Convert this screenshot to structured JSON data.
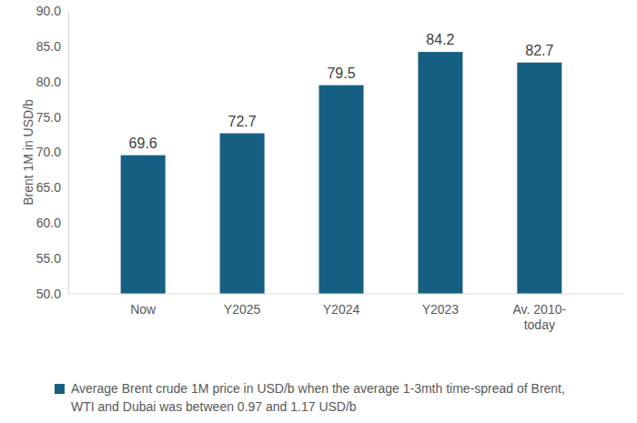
{
  "chart_data": {
    "type": "bar",
    "y_label": "Brent 1M in USD/b",
    "categories": [
      "Now",
      "Y2025",
      "Y2024",
      "Y2023",
      "Av. 2010-today"
    ],
    "series": [
      {
        "name": "Average Brent crude 1M price in USD/b when the average 1-3mth time-spread of Brent, WTI and Dubai was between 0.97 and 1.17 USD/b",
        "color": "#156082",
        "values": [
          69.6,
          72.7,
          79.5,
          84.2,
          82.7
        ]
      }
    ],
    "ylim": [
      50,
      90
    ],
    "yticks": [
      {
        "value": 50,
        "label": "50.0"
      },
      {
        "value": 55,
        "label": "55.0"
      },
      {
        "value": 60,
        "label": "60.0"
      },
      {
        "value": 65,
        "label": "65.0"
      },
      {
        "value": 70,
        "label": "70.0"
      },
      {
        "value": 75,
        "label": "75.0"
      },
      {
        "value": 80,
        "label": "80.0"
      },
      {
        "value": 85,
        "label": "85.0"
      },
      {
        "value": 90,
        "label": "90.0"
      }
    ],
    "grid": false,
    "legend": "bottom",
    "data_labels": true
  }
}
